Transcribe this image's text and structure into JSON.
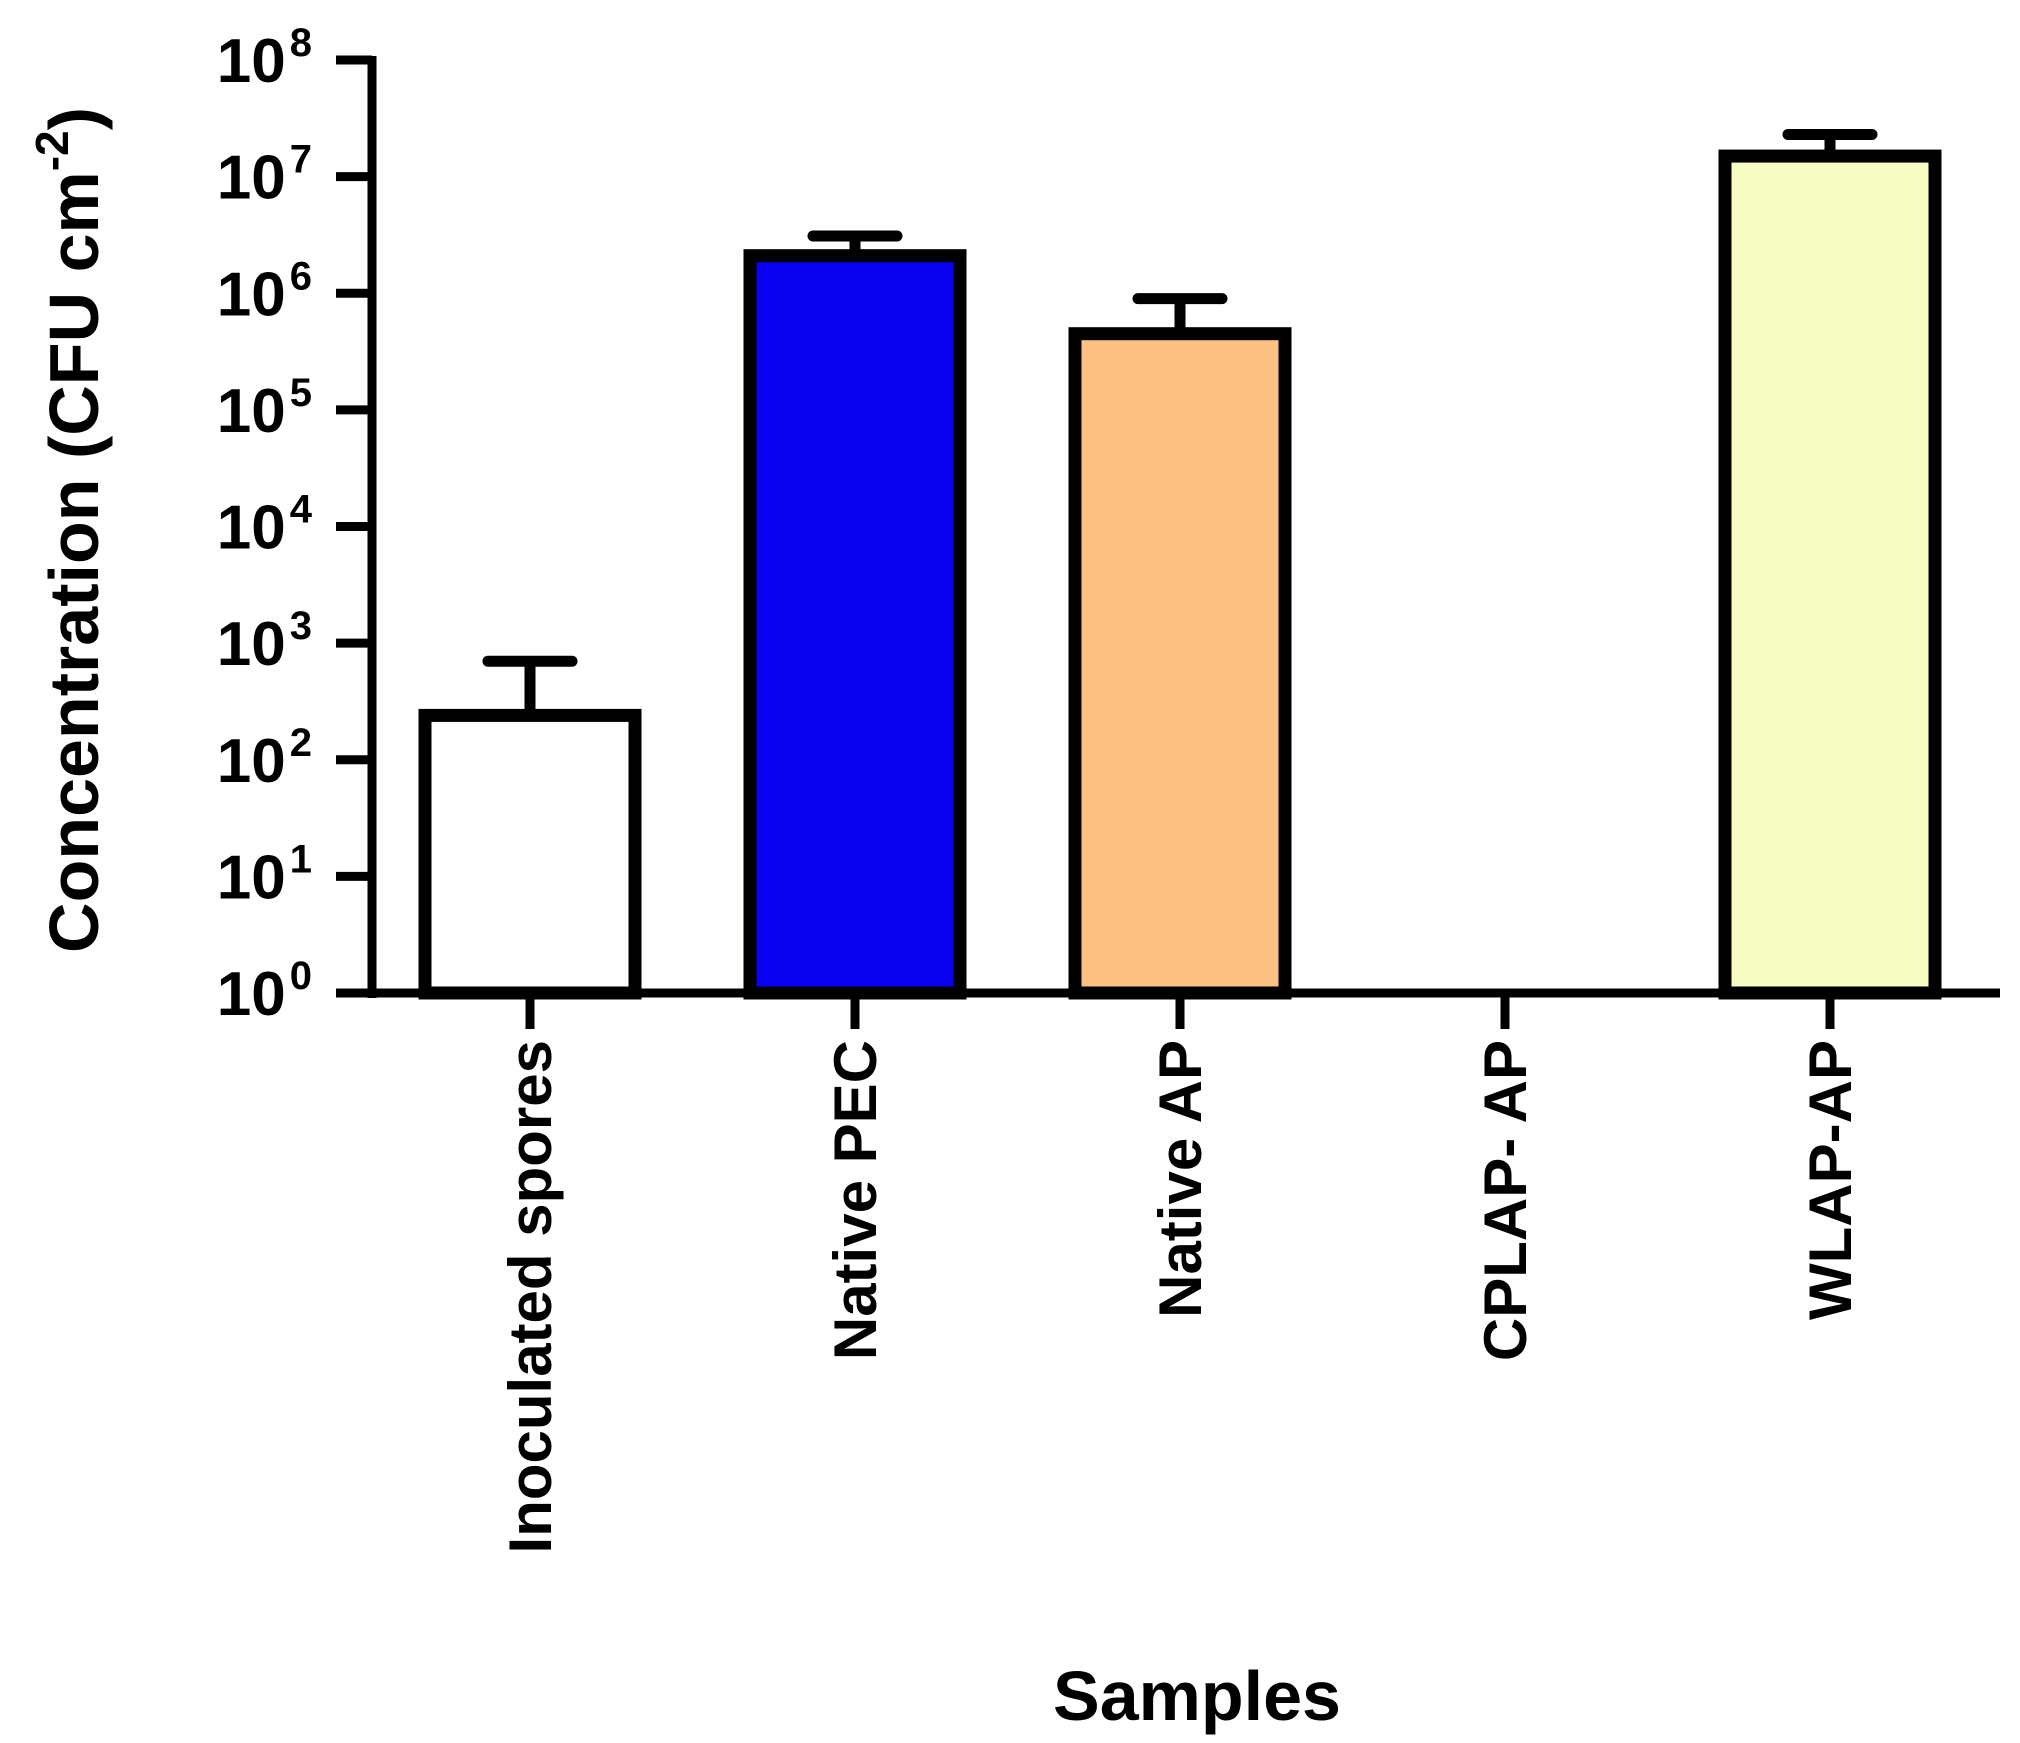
{
  "chart_data": {
    "type": "bar",
    "xlabel": "Samples",
    "ylabel": {
      "text": "Concentration (CFU cm",
      "superscript": "-2",
      "suffix": ")"
    },
    "yscale": "log",
    "ylim": [
      1,
      100000000
    ],
    "yticks": [
      {
        "base": "10",
        "exp": "0",
        "value": 1
      },
      {
        "base": "10",
        "exp": "1",
        "value": 10
      },
      {
        "base": "10",
        "exp": "2",
        "value": 100
      },
      {
        "base": "10",
        "exp": "3",
        "value": 1000
      },
      {
        "base": "10",
        "exp": "4",
        "value": 10000
      },
      {
        "base": "10",
        "exp": "5",
        "value": 100000
      },
      {
        "base": "10",
        "exp": "6",
        "value": 1000000
      },
      {
        "base": "10",
        "exp": "7",
        "value": 10000000
      },
      {
        "base": "10",
        "exp": "8",
        "value": 100000000
      }
    ],
    "categories": [
      "Inoculated spores",
      "Native PEC",
      "Native AP",
      "CPLAP- AP",
      "WLAP-AP"
    ],
    "values": [
      240,
      2100000,
      450000,
      null,
      15000000
    ],
    "error_upper": [
      700,
      3100000,
      900000,
      null,
      23000000
    ],
    "colors": [
      "#ffffff",
      "#0a00f0",
      "#fdc083",
      "#ffffff",
      "#f6fcc2"
    ],
    "grid": false,
    "legend": "none"
  }
}
